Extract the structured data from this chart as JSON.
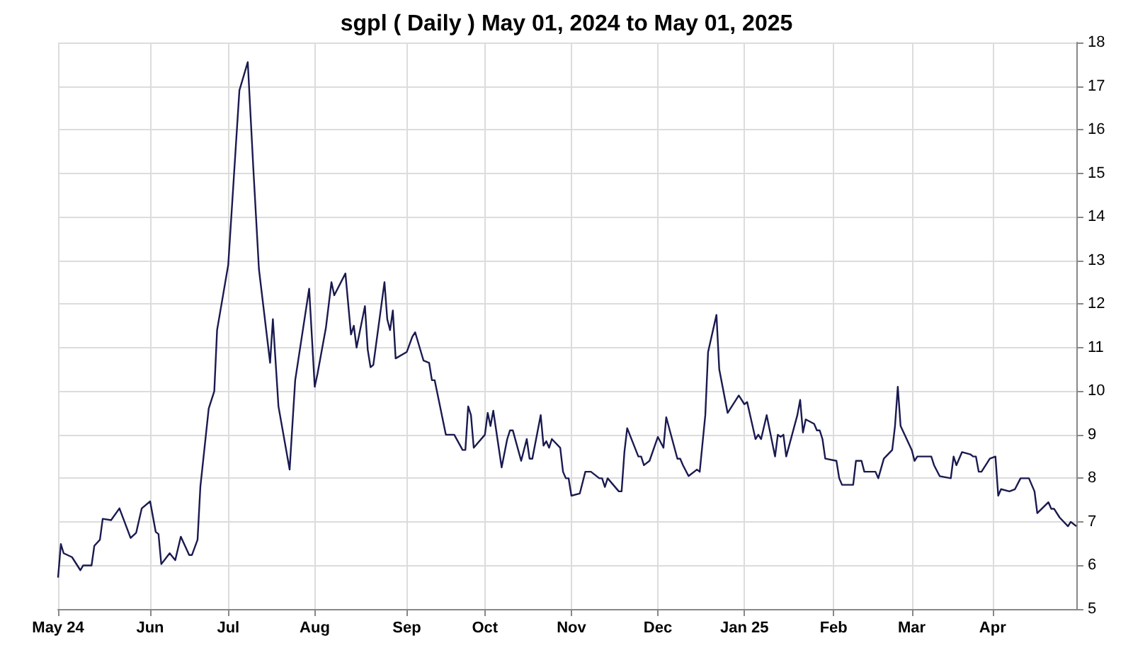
{
  "chart_data": {
    "type": "line",
    "title": "sgpl ( Daily ) May 01, 2024 to May 01, 2025",
    "x": [
      "2024-05-01",
      "2024-05-02",
      "2024-05-03",
      "2024-05-06",
      "2024-05-09",
      "2024-05-10",
      "2024-05-13",
      "2024-05-14",
      "2024-05-16",
      "2024-05-17",
      "2024-05-20",
      "2024-05-23",
      "2024-05-27",
      "2024-05-29",
      "2024-05-31",
      "2024-06-03",
      "2024-06-05",
      "2024-06-06",
      "2024-06-07",
      "2024-06-10",
      "2024-06-12",
      "2024-06-14",
      "2024-06-17",
      "2024-06-18",
      "2024-06-20",
      "2024-06-21",
      "2024-06-24",
      "2024-06-26",
      "2024-06-27",
      "2024-07-01",
      "2024-07-03",
      "2024-07-05",
      "2024-07-08",
      "2024-07-10",
      "2024-07-12",
      "2024-07-16",
      "2024-07-17",
      "2024-07-19",
      "2024-07-23",
      "2024-07-25",
      "2024-07-30",
      "2024-08-01",
      "2024-08-02",
      "2024-08-05",
      "2024-08-07",
      "2024-08-08",
      "2024-08-12",
      "2024-08-14",
      "2024-08-15",
      "2024-08-16",
      "2024-08-19",
      "2024-08-20",
      "2024-08-21",
      "2024-08-22",
      "2024-08-26",
      "2024-08-27",
      "2024-08-28",
      "2024-08-29",
      "2024-08-30",
      "2024-09-03",
      "2024-09-05",
      "2024-09-06",
      "2024-09-09",
      "2024-09-11",
      "2024-09-12",
      "2024-09-13",
      "2024-09-17",
      "2024-09-20",
      "2024-09-23",
      "2024-09-24",
      "2024-09-25",
      "2024-09-26",
      "2024-09-27",
      "2024-10-01",
      "2024-10-02",
      "2024-10-03",
      "2024-10-04",
      "2024-10-07",
      "2024-10-09",
      "2024-10-10",
      "2024-10-11",
      "2024-10-14",
      "2024-10-16",
      "2024-10-17",
      "2024-10-18",
      "2024-10-21",
      "2024-10-22",
      "2024-10-23",
      "2024-10-24",
      "2024-10-25",
      "2024-10-28",
      "2024-10-29",
      "2024-10-30",
      "2024-10-31",
      "2024-11-01",
      "2024-11-04",
      "2024-11-06",
      "2024-11-08",
      "2024-11-11",
      "2024-11-12",
      "2024-11-13",
      "2024-11-14",
      "2024-11-18",
      "2024-11-19",
      "2024-11-20",
      "2024-11-21",
      "2024-11-25",
      "2024-11-26",
      "2024-11-27",
      "2024-11-29",
      "2024-12-02",
      "2024-12-04",
      "2024-12-05",
      "2024-12-09",
      "2024-12-10",
      "2024-12-11",
      "2024-12-13",
      "2024-12-16",
      "2024-12-17",
      "2024-12-19",
      "2024-12-20",
      "2024-12-23",
      "2024-12-24",
      "2024-12-27",
      "2024-12-31",
      "2025-01-02",
      "2025-01-03",
      "2025-01-06",
      "2025-01-07",
      "2025-01-08",
      "2025-01-10",
      "2025-01-13",
      "2025-01-14",
      "2025-01-15",
      "2025-01-16",
      "2025-01-17",
      "2025-01-21",
      "2025-01-22",
      "2025-01-23",
      "2025-01-24",
      "2025-01-27",
      "2025-01-28",
      "2025-01-29",
      "2025-01-30",
      "2025-01-31",
      "2025-02-04",
      "2025-02-05",
      "2025-02-06",
      "2025-02-10",
      "2025-02-11",
      "2025-02-13",
      "2025-02-14",
      "2025-02-18",
      "2025-02-19",
      "2025-02-21",
      "2025-02-24",
      "2025-02-25",
      "2025-02-26",
      "2025-02-27",
      "2025-03-03",
      "2025-03-04",
      "2025-03-05",
      "2025-03-10",
      "2025-03-11",
      "2025-03-13",
      "2025-03-17",
      "2025-03-18",
      "2025-03-19",
      "2025-03-21",
      "2025-03-24",
      "2025-03-25",
      "2025-03-26",
      "2025-03-27",
      "2025-03-28",
      "2025-03-31",
      "2025-04-02",
      "2025-04-03",
      "2025-04-04",
      "2025-04-07",
      "2025-04-09",
      "2025-04-11",
      "2025-04-14",
      "2025-04-16",
      "2025-04-17",
      "2025-04-21",
      "2025-04-22",
      "2025-04-23",
      "2025-04-25",
      "2025-04-28",
      "2025-04-29",
      "2025-04-30",
      "2025-05-01"
    ],
    "series": [
      {
        "color": "#1a1a50",
        "values": [
          5.72,
          6.49,
          6.28,
          6.19,
          5.89,
          6.0,
          6.0,
          6.45,
          6.59,
          7.07,
          7.04,
          7.31,
          6.63,
          6.75,
          7.31,
          7.47,
          6.77,
          6.72,
          6.03,
          6.28,
          6.12,
          6.66,
          6.24,
          6.24,
          6.59,
          7.8,
          9.6,
          10.0,
          11.4,
          12.9,
          14.9,
          16.9,
          17.55,
          15.1,
          12.8,
          10.65,
          11.65,
          9.65,
          8.2,
          10.25,
          12.35,
          10.1,
          10.4,
          11.45,
          12.5,
          12.2,
          12.7,
          11.3,
          11.5,
          11.0,
          11.95,
          10.95,
          10.55,
          10.6,
          12.5,
          11.65,
          11.4,
          11.85,
          10.75,
          10.9,
          11.25,
          11.35,
          10.7,
          10.65,
          10.25,
          10.25,
          9.0,
          9.0,
          8.65,
          8.65,
          9.65,
          9.45,
          8.7,
          9.0,
          9.5,
          9.2,
          9.55,
          8.25,
          8.9,
          9.1,
          9.1,
          8.4,
          8.9,
          8.45,
          8.45,
          9.45,
          8.75,
          8.85,
          8.7,
          8.9,
          8.7,
          8.15,
          8.0,
          8.0,
          7.6,
          7.65,
          8.15,
          8.15,
          8.0,
          8.0,
          7.8,
          8.0,
          7.7,
          7.7,
          8.6,
          9.15,
          8.5,
          8.5,
          8.3,
          8.4,
          8.95,
          8.7,
          9.4,
          8.45,
          8.45,
          8.3,
          8.05,
          8.2,
          8.15,
          9.45,
          10.9,
          11.75,
          10.5,
          9.5,
          9.9,
          9.7,
          9.75,
          8.9,
          9.0,
          8.9,
          9.45,
          8.5,
          9.0,
          8.95,
          9.0,
          8.5,
          9.45,
          9.8,
          9.05,
          9.35,
          9.25,
          9.1,
          9.1,
          8.9,
          8.45,
          8.4,
          8.0,
          7.85,
          7.85,
          8.4,
          8.4,
          8.15,
          8.15,
          8.0,
          8.45,
          8.65,
          9.2,
          10.1,
          9.2,
          8.65,
          8.4,
          8.5,
          8.5,
          8.3,
          8.05,
          8.0,
          8.5,
          8.3,
          8.6,
          8.55,
          8.5,
          8.5,
          8.15,
          8.15,
          8.45,
          8.5,
          7.6,
          7.75,
          7.7,
          7.75,
          8.0,
          8.0,
          7.7,
          7.2,
          7.45,
          7.3,
          7.3,
          7.1,
          6.9,
          7.0,
          6.95,
          6.9
        ]
      }
    ],
    "xlim": [
      "2024-05-01",
      "2025-05-01"
    ],
    "xticks": [
      {
        "value": "2024-05-01",
        "label": "May 24"
      },
      {
        "value": "2024-06-03",
        "label": "Jun"
      },
      {
        "value": "2024-07-01",
        "label": "Jul"
      },
      {
        "value": "2024-08-01",
        "label": "Aug"
      },
      {
        "value": "2024-09-03",
        "label": "Sep"
      },
      {
        "value": "2024-10-01",
        "label": "Oct"
      },
      {
        "value": "2024-11-01",
        "label": "Nov"
      },
      {
        "value": "2024-12-02",
        "label": "Dec"
      },
      {
        "value": "2025-01-02",
        "label": "Jan 25"
      },
      {
        "value": "2025-02-03",
        "label": "Feb"
      },
      {
        "value": "2025-03-03",
        "label": "Mar"
      },
      {
        "value": "2025-04-01",
        "label": "Apr"
      }
    ],
    "ylim": [
      5,
      18
    ],
    "yticks": [
      5,
      6,
      7,
      8,
      9,
      10,
      11,
      12,
      13,
      14,
      15,
      16,
      17,
      18
    ],
    "grid": true,
    "marker": "none",
    "line_style": "solid"
  }
}
